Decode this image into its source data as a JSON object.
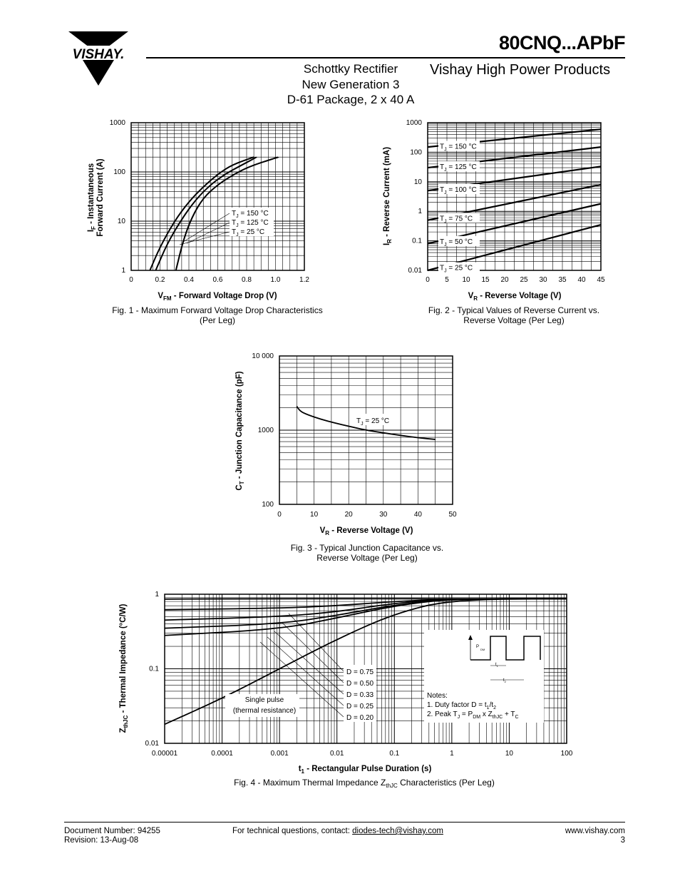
{
  "header": {
    "brand": "VISHAY.",
    "part_number": "80CNQ...APbF",
    "subtitle_lines": [
      "Schottky Rectifier",
      "New Generation 3",
      "D-61 Package, 2 x 40 A"
    ],
    "division": "Vishay High Power Products"
  },
  "chart_data": [
    {
      "type": "line",
      "figure": "Fig. 1",
      "caption_line1": "Fig. 1 - Maximum Forward Voltage Drop Characteristics",
      "caption_line2": "(Per Leg)",
      "xlabel_main": "V",
      "xlabel_sub": "FM",
      "xlabel_rest": " - Forward Voltage Drop (V)",
      "ylabel_line1": "I",
      "ylabel_line1_sub": "F",
      "ylabel_line1_rest": " - Instantaneous",
      "ylabel_line2": "Forward Current (A)",
      "x_ticks": [
        "0",
        "0.2",
        "0.4",
        "0.6",
        "0.8",
        "1.0",
        "1.2"
      ],
      "y_ticks": [
        "1",
        "10",
        "100",
        "1000"
      ],
      "xlim": [
        0,
        1.2
      ],
      "ylim": [
        1,
        1000
      ],
      "yscale": "log",
      "legend": [
        "150 °C",
        "125 °C",
        "25 °C"
      ],
      "series": [
        {
          "name": "150 °C",
          "x": [
            0.13,
            0.2,
            0.3,
            0.4,
            0.5,
            0.6,
            0.7,
            0.85
          ],
          "y": [
            1,
            3,
            10,
            25,
            50,
            90,
            140,
            200
          ]
        },
        {
          "name": "125 °C",
          "x": [
            0.17,
            0.25,
            0.35,
            0.45,
            0.55,
            0.65,
            0.75,
            0.87
          ],
          "y": [
            1,
            3.5,
            11,
            28,
            55,
            90,
            130,
            200
          ]
        },
        {
          "name": "25 °C",
          "x": [
            0.31,
            0.36,
            0.42,
            0.5,
            0.6,
            0.7,
            0.82,
            1.02
          ],
          "y": [
            1,
            4,
            12,
            30,
            55,
            85,
            130,
            200
          ]
        }
      ]
    },
    {
      "type": "line",
      "figure": "Fig. 2",
      "caption_line1": "Fig. 2 - Typical Values of Reverse Current vs.",
      "caption_line2": "Reverse Voltage (Per Leg)",
      "xlabel_main": "V",
      "xlabel_sub": "R",
      "xlabel_rest": " - Reverse Voltage (V)",
      "ylabel_main": "I",
      "ylabel_sub": "R",
      "ylabel_rest": " - Reverse Current (mA)",
      "x_ticks": [
        "0",
        "5",
        "10",
        "15",
        "20",
        "25",
        "30",
        "35",
        "40",
        "45"
      ],
      "y_ticks": [
        "0.01",
        "0.1",
        "1",
        "10",
        "100",
        "1000"
      ],
      "xlim": [
        0,
        45
      ],
      "ylim": [
        0.01,
        1000
      ],
      "yscale": "log",
      "series": [
        {
          "name": "150 °C",
          "x": [
            0,
            45
          ],
          "y": [
            150,
            600
          ]
        },
        {
          "name": "125 °C",
          "x": [
            0,
            45
          ],
          "y": [
            30,
            150
          ]
        },
        {
          "name": "100 °C",
          "x": [
            0,
            45
          ],
          "y": [
            5,
            33
          ]
        },
        {
          "name": "75 °C",
          "x": [
            0,
            45
          ],
          "y": [
            0.5,
            8
          ]
        },
        {
          "name": "50 °C",
          "x": [
            0,
            45
          ],
          "y": [
            0.08,
            1.8
          ]
        },
        {
          "name": "25 °C",
          "x": [
            0,
            45
          ],
          "y": [
            0.01,
            0.35
          ]
        }
      ]
    },
    {
      "type": "line",
      "figure": "Fig. 3",
      "caption_line1": "Fig. 3 - Typical Junction Capacitance vs.",
      "caption_line2": "Reverse Voltage (Per Leg)",
      "xlabel_main": "V",
      "xlabel_sub": "R",
      "xlabel_rest": " - Reverse Voltage (V)",
      "ylabel_main": "C",
      "ylabel_sub": "T",
      "ylabel_rest": " - Junction Capacitance (pF)",
      "x_ticks": [
        "0",
        "10",
        "20",
        "30",
        "40",
        "50"
      ],
      "y_ticks": [
        "100",
        "1000",
        "10 000"
      ],
      "xlim": [
        0,
        50
      ],
      "ylim": [
        100,
        10000
      ],
      "yscale": "log",
      "legend": [
        "25 °C"
      ],
      "series": [
        {
          "name": "25 °C",
          "x": [
            5,
            6,
            8,
            12,
            16,
            20,
            25,
            30,
            35,
            40,
            45
          ],
          "y": [
            2100,
            1800,
            1620,
            1400,
            1250,
            1130,
            1000,
            920,
            850,
            790,
            750
          ]
        }
      ]
    },
    {
      "type": "line",
      "figure": "Fig. 4",
      "caption_line1": "Fig. 4 - Maximum Thermal Impedance Z",
      "caption_sub": "thJC",
      "caption_rest": " Characteristics (Per Leg)",
      "xlabel_main": "t",
      "xlabel_sub": "1",
      "xlabel_rest": " - Rectangular Pulse Duration (s)",
      "ylabel_main": "Z",
      "ylabel_sub": "thJC",
      "ylabel_rest": " - Thermal Impedance (°C/W)",
      "x_ticks": [
        "0.00001",
        "0.0001",
        "0.001",
        "0.01",
        "0.1",
        "1",
        "10",
        "100"
      ],
      "y_ticks": [
        "0.01",
        "0.1",
        "1"
      ],
      "xlim": [
        1e-05,
        100
      ],
      "ylim": [
        0.01,
        1
      ],
      "xscale": "log",
      "yscale": "log",
      "duty_labels": [
        "D = 0.75",
        "D = 0.50",
        "D = 0.33",
        "D = 0.25",
        "D = 0.20"
      ],
      "single_pulse_line1": "Single pulse",
      "single_pulse_line2": "(thermal resistance)",
      "notes_title": "Notes:",
      "note1": "1. Duty factor D = t",
      "note1_tail": "/t",
      "note2": "2. Peak T",
      "note2_mid": " = P",
      "note2_mid2": " x Z",
      "note2_end": " + T",
      "inset_p": "P",
      "inset_dm": "DM",
      "inset_t1": "t",
      "inset_t2": "t",
      "series": [
        {
          "name": "D = 0.75",
          "x": [
            1e-05,
            0.001,
            0.01,
            0.1,
            1,
            100
          ],
          "y": [
            0.86,
            0.87,
            0.87,
            0.87,
            0.87,
            0.87
          ]
        },
        {
          "name": "D = 0.50",
          "x": [
            1e-05,
            0.001,
            0.01,
            0.1,
            1,
            100
          ],
          "y": [
            0.62,
            0.65,
            0.7,
            0.8,
            0.87,
            0.87
          ]
        },
        {
          "name": "D = 0.33",
          "x": [
            1e-05,
            0.001,
            0.01,
            0.1,
            1,
            100
          ],
          "y": [
            0.45,
            0.5,
            0.58,
            0.76,
            0.87,
            0.87
          ]
        },
        {
          "name": "D = 0.25",
          "x": [
            1e-05,
            0.001,
            0.01,
            0.1,
            1,
            100
          ],
          "y": [
            0.35,
            0.4,
            0.52,
            0.72,
            0.87,
            0.87
          ]
        },
        {
          "name": "D = 0.20",
          "x": [
            1e-05,
            0.001,
            0.01,
            0.1,
            1,
            100
          ],
          "y": [
            0.28,
            0.34,
            0.48,
            0.7,
            0.87,
            0.87
          ]
        },
        {
          "name": "Single pulse",
          "x": [
            1e-05,
            0.0001,
            0.001,
            0.01,
            0.1,
            1,
            100
          ],
          "y": [
            0.018,
            0.04,
            0.1,
            0.25,
            0.55,
            0.85,
            0.87
          ]
        }
      ]
    }
  ],
  "footer": {
    "doc_number": "Document Number: 94255",
    "revision": "Revision: 13-Aug-08",
    "contact_text": "For technical questions, contact: ",
    "contact_email": "diodes-tech@vishay.com",
    "website": "www.vishay.com",
    "page": "3"
  }
}
